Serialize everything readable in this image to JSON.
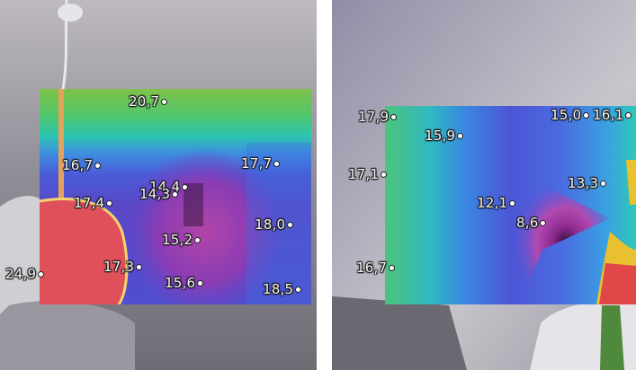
{
  "left_image": {
    "readings": [
      {
        "id": "m1",
        "value": "20,7"
      },
      {
        "id": "m2",
        "value": "16,7"
      },
      {
        "id": "m3",
        "value": "17,7"
      },
      {
        "id": "m4",
        "value": "17,4"
      },
      {
        "id": "m5",
        "value": "14,4"
      },
      {
        "id": "m6",
        "value": "14,3"
      },
      {
        "id": "m7",
        "value": "18,0"
      },
      {
        "id": "m8",
        "value": "15,2"
      },
      {
        "id": "m9",
        "value": "24,9"
      },
      {
        "id": "m10",
        "value": "17,3"
      },
      {
        "id": "m11",
        "value": "15,6"
      },
      {
        "id": "m12",
        "value": "18,5"
      }
    ]
  },
  "right_image": {
    "readings": [
      {
        "id": "r1",
        "value": "17,9"
      },
      {
        "id": "r2",
        "value": "15,0"
      },
      {
        "id": "r3",
        "value": "16,1"
      },
      {
        "id": "r4",
        "value": "15,9"
      },
      {
        "id": "r5",
        "value": "17,1"
      },
      {
        "id": "r6",
        "value": "13,3"
      },
      {
        "id": "r7",
        "value": "12,1"
      },
      {
        "id": "r8",
        "value": "8,6"
      },
      {
        "id": "r9",
        "value": "16,7"
      }
    ]
  },
  "colors": {
    "warm": "#e0505a",
    "cold": "#3a1a44",
    "wall": "#7a7884"
  }
}
